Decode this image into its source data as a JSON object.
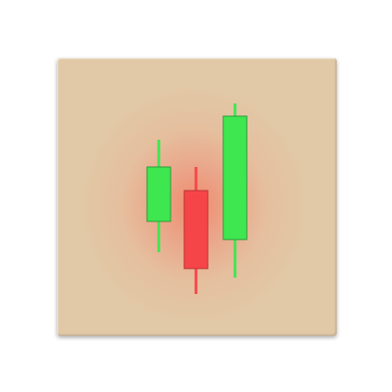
{
  "icon": {
    "name": "candlestick-chart-icon",
    "colors": {
      "tile_base": "#e1c9a7",
      "tile_glow": "#f08a6c",
      "bullish": "#3ee650",
      "bearish": "#f64548",
      "bullish_outline": "#2a9a38",
      "bearish_outline": "#b83234"
    },
    "candles": [
      {
        "direction": "up",
        "open": 55,
        "close": 85,
        "high": 100,
        "low": 38
      },
      {
        "direction": "down",
        "open": 72,
        "close": 29,
        "high": 85,
        "low": 15
      },
      {
        "direction": "up",
        "open": 45,
        "close": 113,
        "high": 120,
        "low": 24
      }
    ]
  }
}
